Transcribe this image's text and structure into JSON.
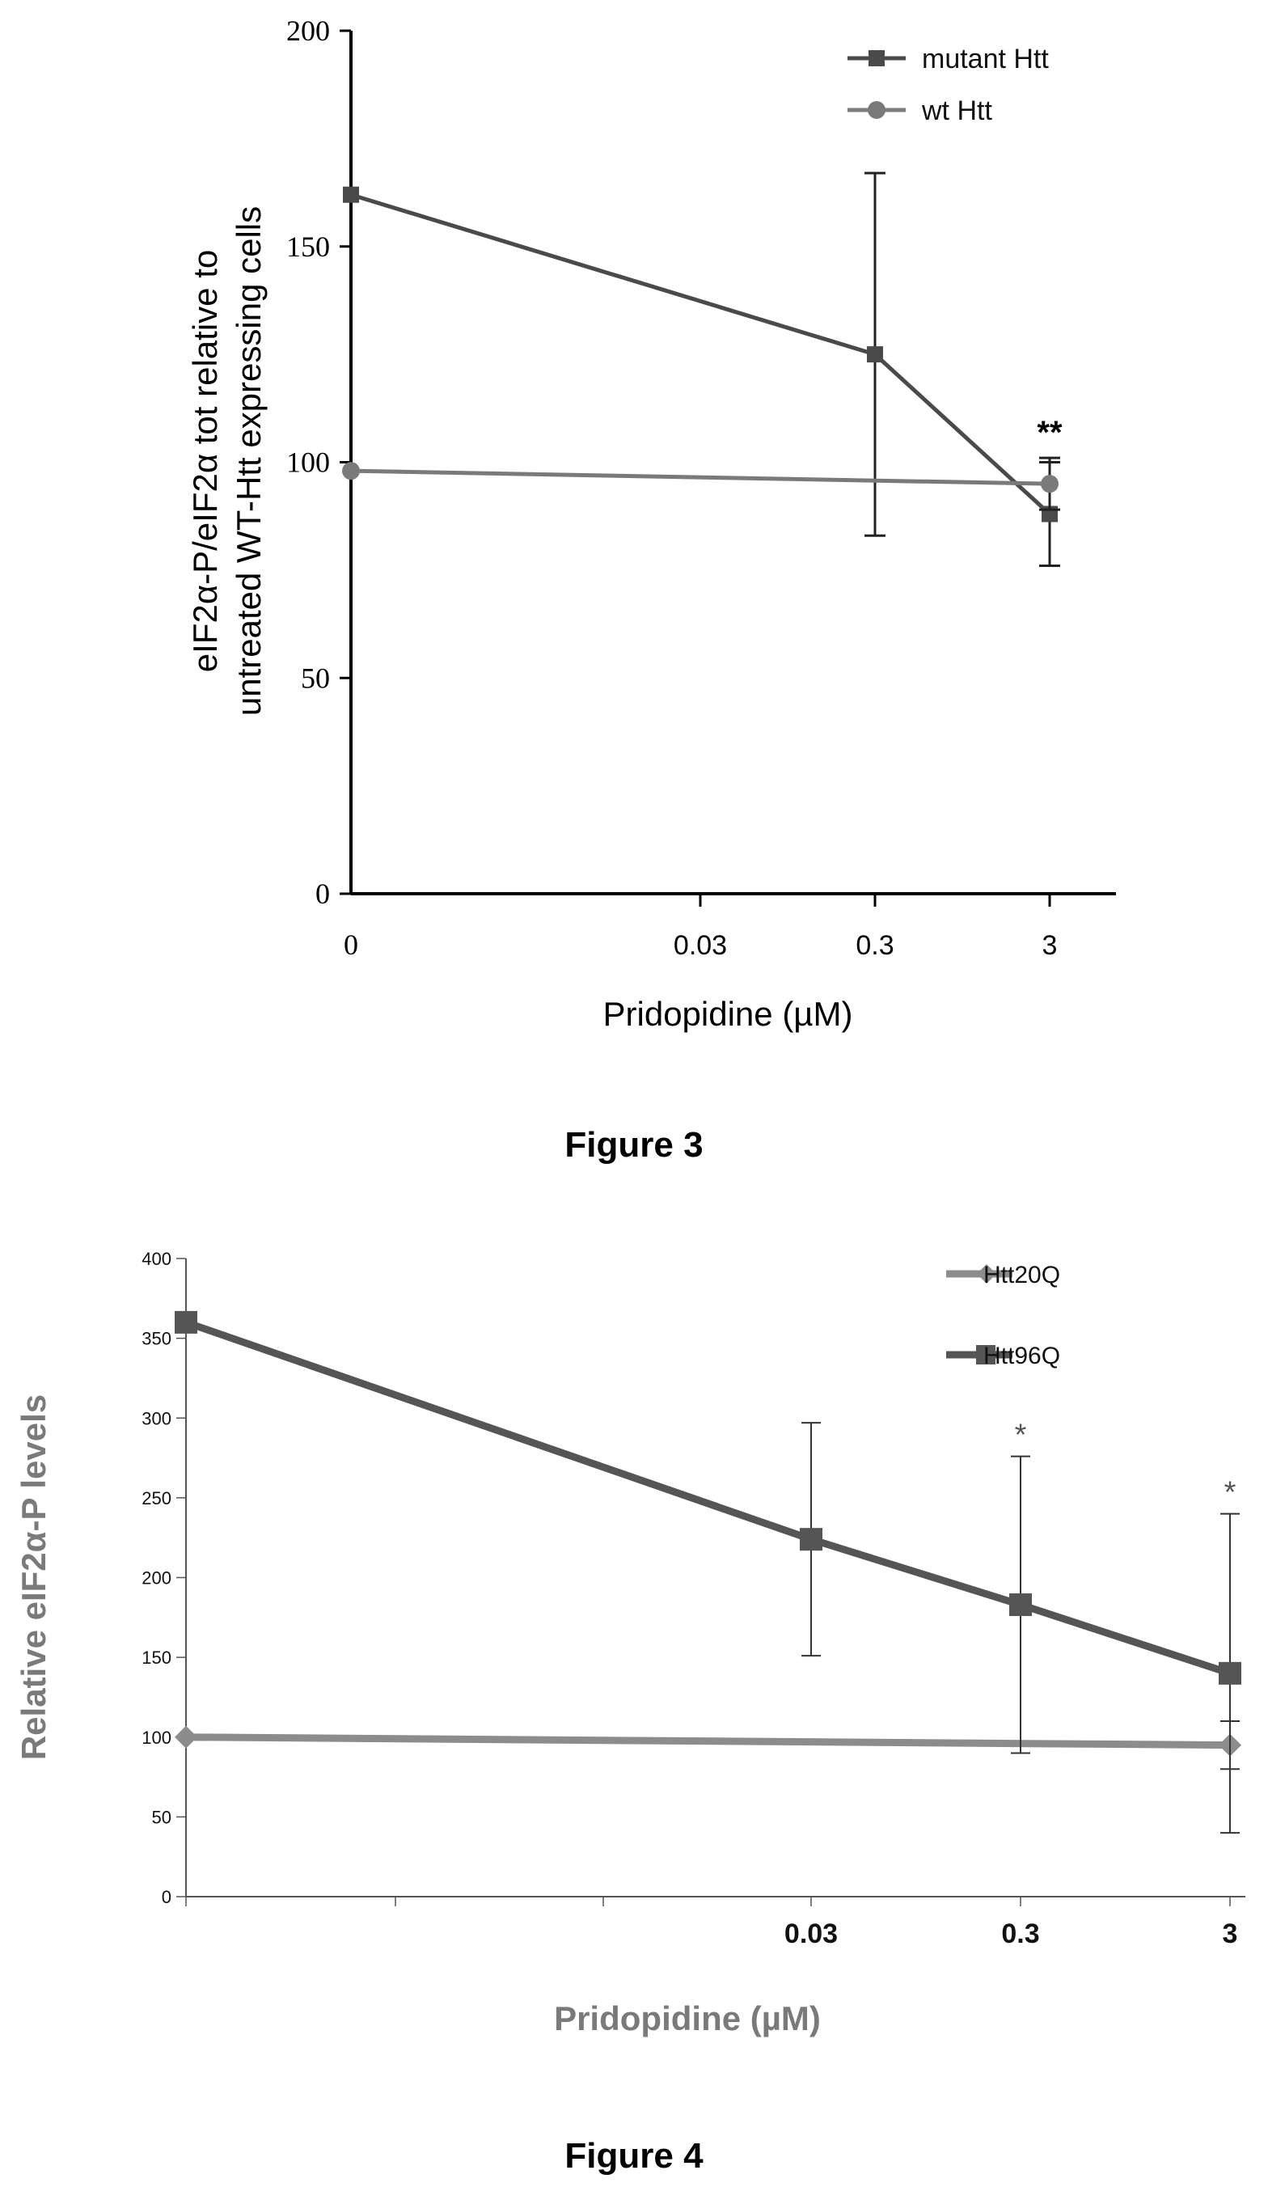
{
  "chart_data": [
    {
      "type": "line",
      "caption": "Figure 3",
      "xlabel": "Pridopidine (µM)",
      "ylabel_lines": [
        "eIF2α-P/eIF2α tot relative to",
        "untreated WT-Htt expressing cells"
      ],
      "categories": [
        "0",
        "0.03",
        "0.3",
        "3"
      ],
      "ylim": [
        0,
        200
      ],
      "yticks": [
        "0",
        "50",
        "100",
        "150",
        "200"
      ],
      "legend_position": "top-right",
      "grid": false,
      "series": [
        {
          "name": "mutant Htt",
          "marker": "square",
          "color": "#4a4a4a",
          "points": [
            {
              "x": "0",
              "y": 162,
              "err": null
            },
            {
              "x": "0.3",
              "y": 125,
              "err": 42
            },
            {
              "x": "3",
              "y": 88,
              "err": 12
            }
          ]
        },
        {
          "name": "wt Htt",
          "marker": "circle",
          "color": "#7a7a7a",
          "points": [
            {
              "x": "0",
              "y": 98,
              "err": null
            },
            {
              "x": "3",
              "y": 95,
              "err": 6
            }
          ]
        }
      ],
      "annotations": [
        {
          "x": "3",
          "text": "**"
        }
      ]
    },
    {
      "type": "line",
      "caption": "Figure 4",
      "xlabel": "Pridopidine (µM)",
      "ylabel": "Relative eIF2α-P levels",
      "categories": [
        "",
        "0.03",
        "0.3",
        "3"
      ],
      "ylim": [
        0,
        400
      ],
      "yticks": [
        "0",
        "50",
        "100",
        "150",
        "200",
        "250",
        "300",
        "350",
        "400"
      ],
      "legend_position": "top-right",
      "grid": false,
      "series": [
        {
          "name": "Htt20Q",
          "marker": "diamond",
          "color": "#8c8c8c",
          "points": [
            {
              "x": "",
              "y": 100,
              "err": null
            },
            {
              "x": "3",
              "y": 95,
              "err": 15
            }
          ]
        },
        {
          "name": "Htt96Q",
          "marker": "square",
          "color": "#555555",
          "points": [
            {
              "x": "",
              "y": 360,
              "err": null
            },
            {
              "x": "0.03",
              "y": 224,
              "err": 73
            },
            {
              "x": "0.3",
              "y": 183,
              "err": 93
            },
            {
              "x": "3",
              "y": 140,
              "err": 100
            }
          ]
        }
      ],
      "annotations": [
        {
          "x": "0.3",
          "text": "*"
        },
        {
          "x": "3",
          "text": "*"
        }
      ]
    }
  ]
}
